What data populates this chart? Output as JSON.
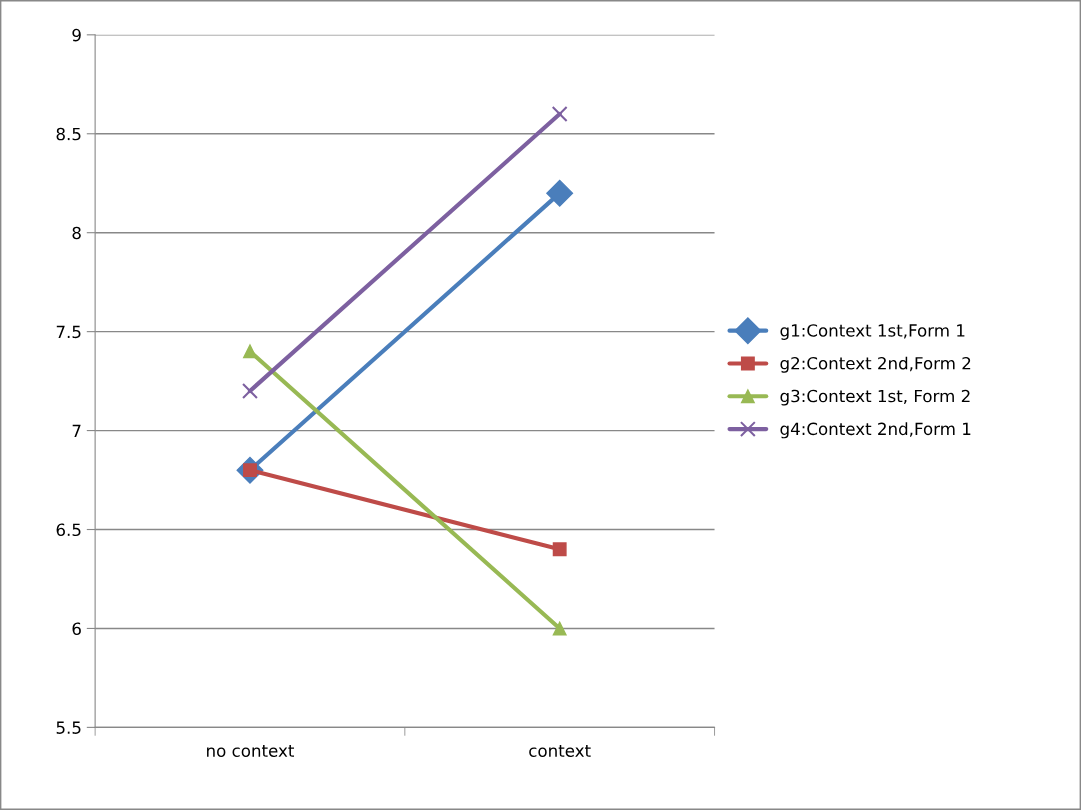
{
  "chart_data": {
    "type": "line",
    "categories": [
      "no context",
      "context"
    ],
    "series": [
      {
        "name": "g1:Context 1st,Form 1",
        "color": "#4a7ebb",
        "marker": "diamond",
        "values": [
          6.8,
          8.2
        ]
      },
      {
        "name": "g2:Context 2nd,Form 2",
        "color": "#be4b48",
        "marker": "square",
        "values": [
          6.8,
          6.4
        ]
      },
      {
        "name": "g3:Context 1st, Form 2",
        "color": "#98b954",
        "marker": "triangle",
        "values": [
          7.4,
          6.0
        ]
      },
      {
        "name": "g4:Context 2nd,Form 1",
        "color": "#7d60a0",
        "marker": "cross",
        "values": [
          7.2,
          8.6
        ]
      }
    ],
    "ylim": [
      5.5,
      9
    ],
    "yticks": [
      5.5,
      6,
      6.5,
      7,
      7.5,
      8,
      8.5,
      9
    ],
    "grid": "y",
    "legend": "right",
    "line_style": "solid"
  }
}
